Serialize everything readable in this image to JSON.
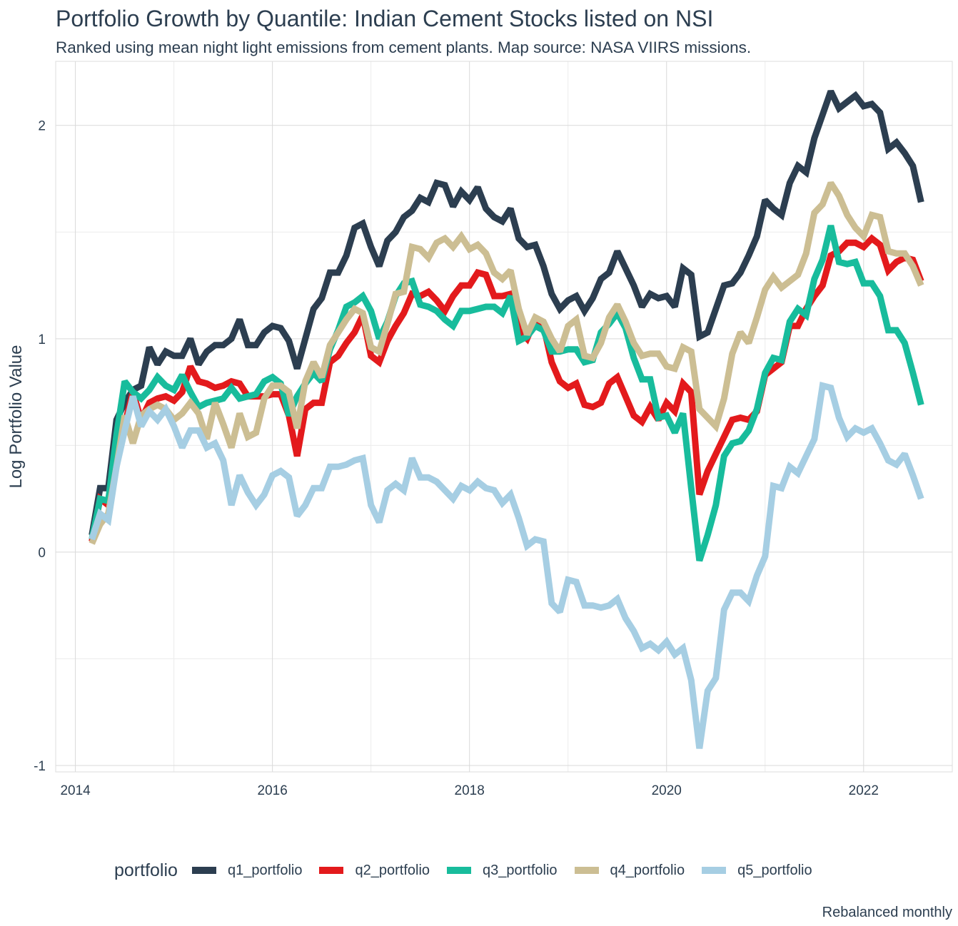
{
  "title": "Portfolio Growth by Quantile: Indian Cement Stocks listed on NSI",
  "subtitle": "Ranked using mean night light emissions from cement plants. Map source: NASA VIIRS missions.",
  "caption": "Rebalanced monthly",
  "legend_title": "portfolio",
  "chart_data": {
    "type": "line",
    "xlabel": "",
    "ylabel": "Log Portfolio Value",
    "xlim": [
      2013.8,
      2022.9
    ],
    "ylim": [
      -1.03,
      2.3
    ],
    "x_ticks": [
      2014,
      2016,
      2018,
      2020,
      2022
    ],
    "x_tick_labels": [
      "2014",
      "2016",
      "2018",
      "2020",
      "2022"
    ],
    "y_ticks": [
      -1,
      0,
      1,
      2
    ],
    "y_tick_labels": [
      "-1",
      "0",
      "1",
      "2"
    ],
    "grid": true,
    "legend_position": "bottom",
    "x_start": 2014.167,
    "x_step": 0.0833333,
    "series": [
      {
        "name": "q1_portfolio",
        "color": "#2c3e50",
        "values": [
          0.08,
          0.3,
          0.3,
          0.62,
          0.7,
          0.76,
          0.78,
          0.96,
          0.88,
          0.94,
          0.92,
          0.92,
          1.0,
          0.88,
          0.94,
          0.97,
          0.97,
          1.0,
          1.09,
          0.97,
          0.97,
          1.03,
          1.06,
          1.05,
          0.99,
          0.86,
          1.0,
          1.14,
          1.19,
          1.31,
          1.31,
          1.39,
          1.52,
          1.54,
          1.43,
          1.34,
          1.46,
          1.5,
          1.57,
          1.6,
          1.66,
          1.64,
          1.73,
          1.72,
          1.62,
          1.69,
          1.65,
          1.71,
          1.61,
          1.57,
          1.55,
          1.61,
          1.47,
          1.43,
          1.44,
          1.34,
          1.21,
          1.14,
          1.18,
          1.2,
          1.13,
          1.19,
          1.28,
          1.31,
          1.41,
          1.33,
          1.25,
          1.15,
          1.21,
          1.19,
          1.2,
          1.15,
          1.33,
          1.3,
          1.01,
          1.03,
          1.14,
          1.25,
          1.26,
          1.31,
          1.39,
          1.48,
          1.65,
          1.61,
          1.58,
          1.73,
          1.81,
          1.78,
          1.94,
          2.05,
          2.16,
          2.08,
          2.11,
          2.14,
          2.09,
          2.1,
          2.06,
          1.89,
          1.92,
          1.87,
          1.81,
          1.64
        ]
      },
      {
        "name": "q2_portfolio",
        "color": "#e31a1c",
        "values": [
          0.05,
          0.25,
          0.22,
          0.45,
          0.6,
          0.75,
          0.62,
          0.7,
          0.72,
          0.73,
          0.71,
          0.75,
          0.87,
          0.8,
          0.79,
          0.77,
          0.78,
          0.8,
          0.79,
          0.73,
          0.73,
          0.73,
          0.74,
          0.74,
          0.64,
          0.45,
          0.67,
          0.7,
          0.7,
          0.89,
          0.92,
          0.98,
          1.03,
          1.11,
          0.92,
          0.89,
          0.99,
          1.06,
          1.12,
          1.21,
          1.2,
          1.22,
          1.18,
          1.13,
          1.2,
          1.25,
          1.25,
          1.31,
          1.3,
          1.2,
          1.2,
          1.21,
          1.04,
          1.0,
          1.09,
          1.06,
          0.89,
          0.8,
          0.77,
          0.79,
          0.69,
          0.68,
          0.7,
          0.79,
          0.82,
          0.73,
          0.64,
          0.61,
          0.68,
          0.62,
          0.7,
          0.66,
          0.79,
          0.75,
          0.27,
          0.38,
          0.46,
          0.54,
          0.62,
          0.63,
          0.62,
          0.66,
          0.83,
          0.86,
          0.89,
          1.06,
          1.06,
          1.14,
          1.2,
          1.25,
          1.39,
          1.41,
          1.45,
          1.45,
          1.43,
          1.47,
          1.44,
          1.32,
          1.36,
          1.38,
          1.37,
          1.27
        ]
      },
      {
        "name": "q3_portfolio",
        "color": "#18bc9c",
        "values": [
          0.06,
          0.25,
          0.24,
          0.55,
          0.8,
          0.75,
          0.72,
          0.76,
          0.82,
          0.78,
          0.76,
          0.83,
          0.75,
          0.68,
          0.7,
          0.71,
          0.72,
          0.77,
          0.72,
          0.73,
          0.74,
          0.8,
          0.82,
          0.79,
          0.64,
          0.73,
          0.79,
          0.84,
          0.8,
          0.95,
          1.04,
          1.15,
          1.17,
          1.2,
          1.13,
          1.0,
          1.08,
          1.2,
          1.26,
          1.27,
          1.16,
          1.15,
          1.13,
          1.09,
          1.06,
          1.13,
          1.13,
          1.14,
          1.15,
          1.15,
          1.12,
          1.2,
          0.99,
          1.01,
          1.06,
          1.04,
          0.94,
          0.94,
          0.95,
          0.95,
          0.89,
          0.9,
          1.03,
          1.07,
          1.12,
          1.05,
          0.91,
          0.81,
          0.81,
          0.63,
          0.64,
          0.56,
          0.65,
          0.3,
          -0.04,
          0.08,
          0.22,
          0.45,
          0.51,
          0.52,
          0.57,
          0.67,
          0.84,
          0.91,
          0.9,
          1.08,
          1.14,
          1.11,
          1.28,
          1.37,
          1.53,
          1.36,
          1.35,
          1.36,
          1.26,
          1.26,
          1.2,
          1.04,
          1.04,
          0.98,
          0.84,
          0.69
        ]
      },
      {
        "name": "q4_portfolio",
        "color": "#ccbe93",
        "values": [
          0.04,
          0.13,
          0.18,
          0.4,
          0.64,
          0.51,
          0.64,
          0.67,
          0.69,
          0.67,
          0.62,
          0.65,
          0.7,
          0.65,
          0.53,
          0.7,
          0.6,
          0.49,
          0.65,
          0.54,
          0.56,
          0.72,
          0.78,
          0.78,
          0.75,
          0.58,
          0.8,
          0.89,
          0.82,
          0.97,
          1.03,
          1.09,
          1.14,
          1.12,
          0.96,
          0.94,
          1.07,
          1.21,
          1.22,
          1.43,
          1.42,
          1.38,
          1.45,
          1.47,
          1.43,
          1.48,
          1.42,
          1.44,
          1.4,
          1.31,
          1.28,
          1.32,
          1.14,
          1.02,
          1.1,
          1.08,
          1.0,
          0.94,
          1.06,
          1.09,
          0.92,
          0.91,
          0.98,
          1.1,
          1.16,
          1.08,
          0.98,
          0.92,
          0.93,
          0.93,
          0.87,
          0.86,
          0.96,
          0.94,
          0.67,
          0.63,
          0.59,
          0.72,
          0.93,
          1.03,
          0.98,
          1.1,
          1.23,
          1.29,
          1.24,
          1.27,
          1.3,
          1.4,
          1.59,
          1.63,
          1.73,
          1.67,
          1.58,
          1.52,
          1.48,
          1.58,
          1.57,
          1.41,
          1.4,
          1.4,
          1.34,
          1.25
        ]
      },
      {
        "name": "q5_portfolio",
        "color": "#a6cee3",
        "values": [
          0.06,
          0.18,
          0.15,
          0.4,
          0.57,
          0.73,
          0.59,
          0.66,
          0.62,
          0.67,
          0.59,
          0.49,
          0.57,
          0.57,
          0.49,
          0.51,
          0.43,
          0.22,
          0.36,
          0.28,
          0.22,
          0.27,
          0.36,
          0.38,
          0.35,
          0.17,
          0.22,
          0.3,
          0.3,
          0.4,
          0.4,
          0.41,
          0.43,
          0.44,
          0.22,
          0.14,
          0.29,
          0.32,
          0.29,
          0.44,
          0.35,
          0.35,
          0.33,
          0.29,
          0.25,
          0.31,
          0.29,
          0.33,
          0.3,
          0.29,
          0.23,
          0.27,
          0.16,
          0.03,
          0.06,
          0.05,
          -0.24,
          -0.28,
          -0.13,
          -0.14,
          -0.25,
          -0.25,
          -0.26,
          -0.25,
          -0.22,
          -0.31,
          -0.37,
          -0.45,
          -0.43,
          -0.46,
          -0.42,
          -0.48,
          -0.45,
          -0.6,
          -0.92,
          -0.65,
          -0.59,
          -0.27,
          -0.19,
          -0.19,
          -0.23,
          -0.11,
          -0.02,
          0.31,
          0.3,
          0.4,
          0.37,
          0.45,
          0.53,
          0.78,
          0.77,
          0.63,
          0.54,
          0.58,
          0.56,
          0.58,
          0.51,
          0.43,
          0.41,
          0.46,
          0.36,
          0.25
        ]
      }
    ]
  }
}
